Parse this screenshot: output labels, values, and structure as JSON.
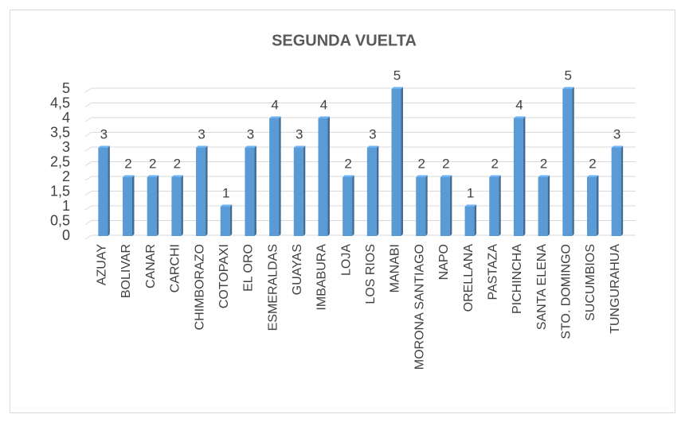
{
  "chart_data": {
    "type": "bar",
    "title": "SEGUNDA VUELTA",
    "categories": [
      "AZUAY",
      "BOLIVAR",
      "CANAR",
      "CARCHI",
      "CHIMBORAZO",
      "COTOPAXI",
      "EL ORO",
      "ESMERALDAS",
      "GUAYAS",
      "IMBABURA",
      "LOJA",
      "LOS RIOS",
      "MANABI",
      "MORONA SANTIAGO",
      "NAPO",
      "ORELLANA",
      "PASTAZA",
      "PICHINCHA",
      "SANTA ELENA",
      "STO. DOMINGO",
      "SUCUMBIOS",
      "TUNGURAHUA"
    ],
    "values": [
      3,
      2,
      2,
      2,
      3,
      1,
      3,
      4,
      3,
      4,
      2,
      3,
      5,
      2,
      2,
      1,
      2,
      4,
      2,
      5,
      2,
      3
    ],
    "color": "#5b9bd5",
    "ylim": [
      0,
      5
    ],
    "yticks": [
      0,
      {
        "value": 0.5,
        "label": "0,5"
      },
      1,
      {
        "value": 1.5,
        "label": "1,5"
      },
      2,
      {
        "value": 2.5,
        "label": "2,5"
      },
      3,
      {
        "value": 3.5,
        "label": "3,5"
      },
      4,
      {
        "value": 4.5,
        "label": "4,5"
      },
      5
    ],
    "grid": true
  }
}
